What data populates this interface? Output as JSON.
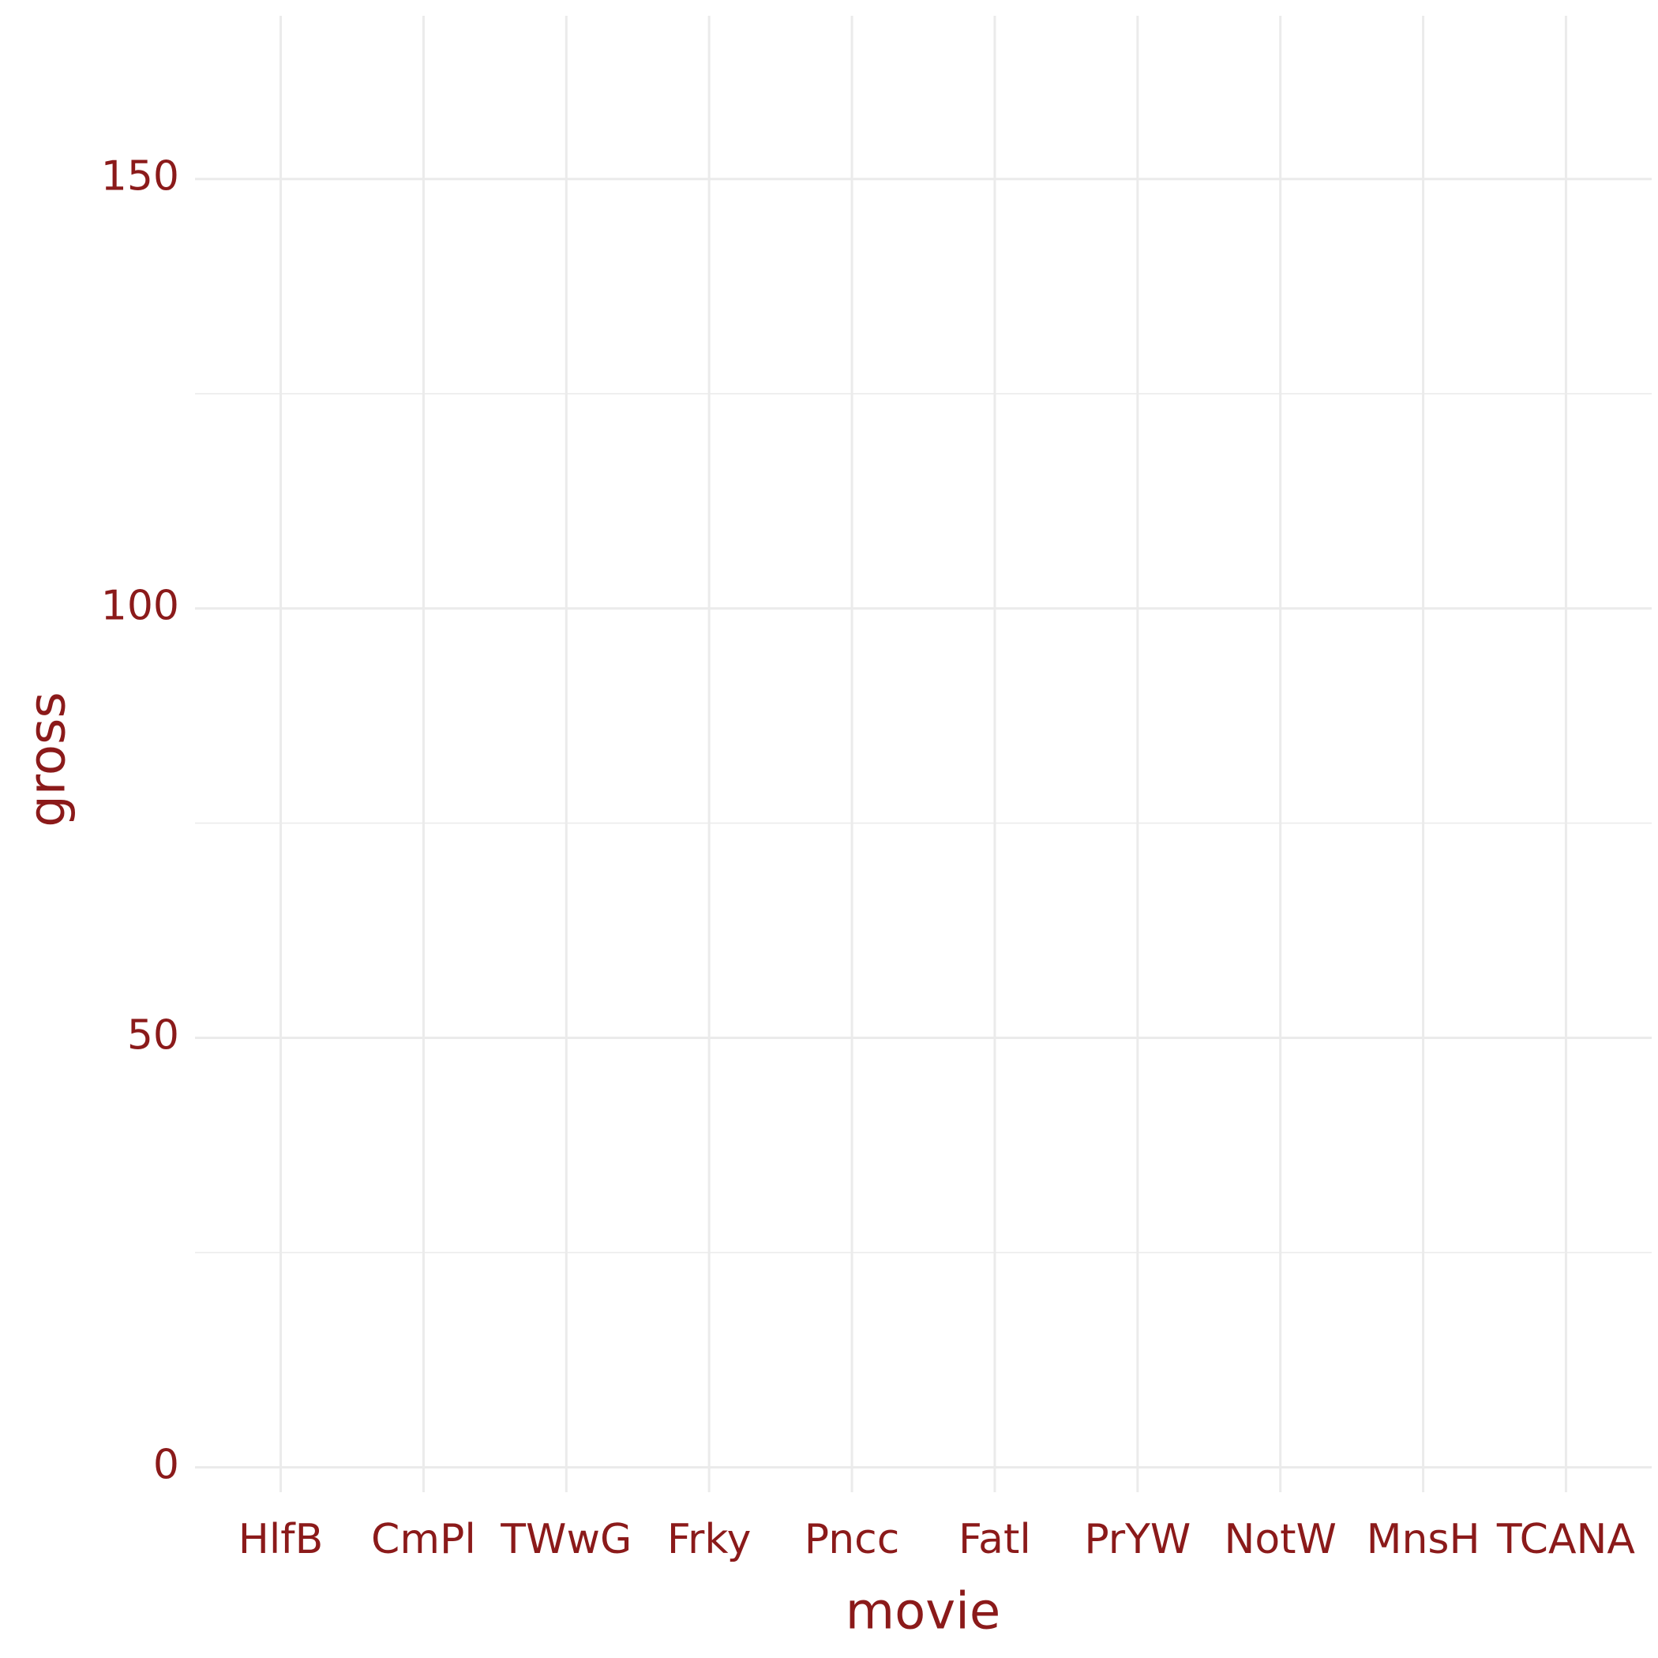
{
  "chart_data": {
    "type": "bar",
    "x_label": "movie",
    "y_label": "gross",
    "categories": [
      "HlfB",
      "CmPl",
      "TWwG",
      "Frky",
      "Pncc",
      "Fatl",
      "PrYW",
      "NotW",
      "MnsH",
      "TCANA"
    ],
    "ylim": [
      -2.9,
      169
    ],
    "yticks": [
      0,
      50,
      100,
      150
    ],
    "grid": true,
    "color": "#8b1a1a"
  }
}
